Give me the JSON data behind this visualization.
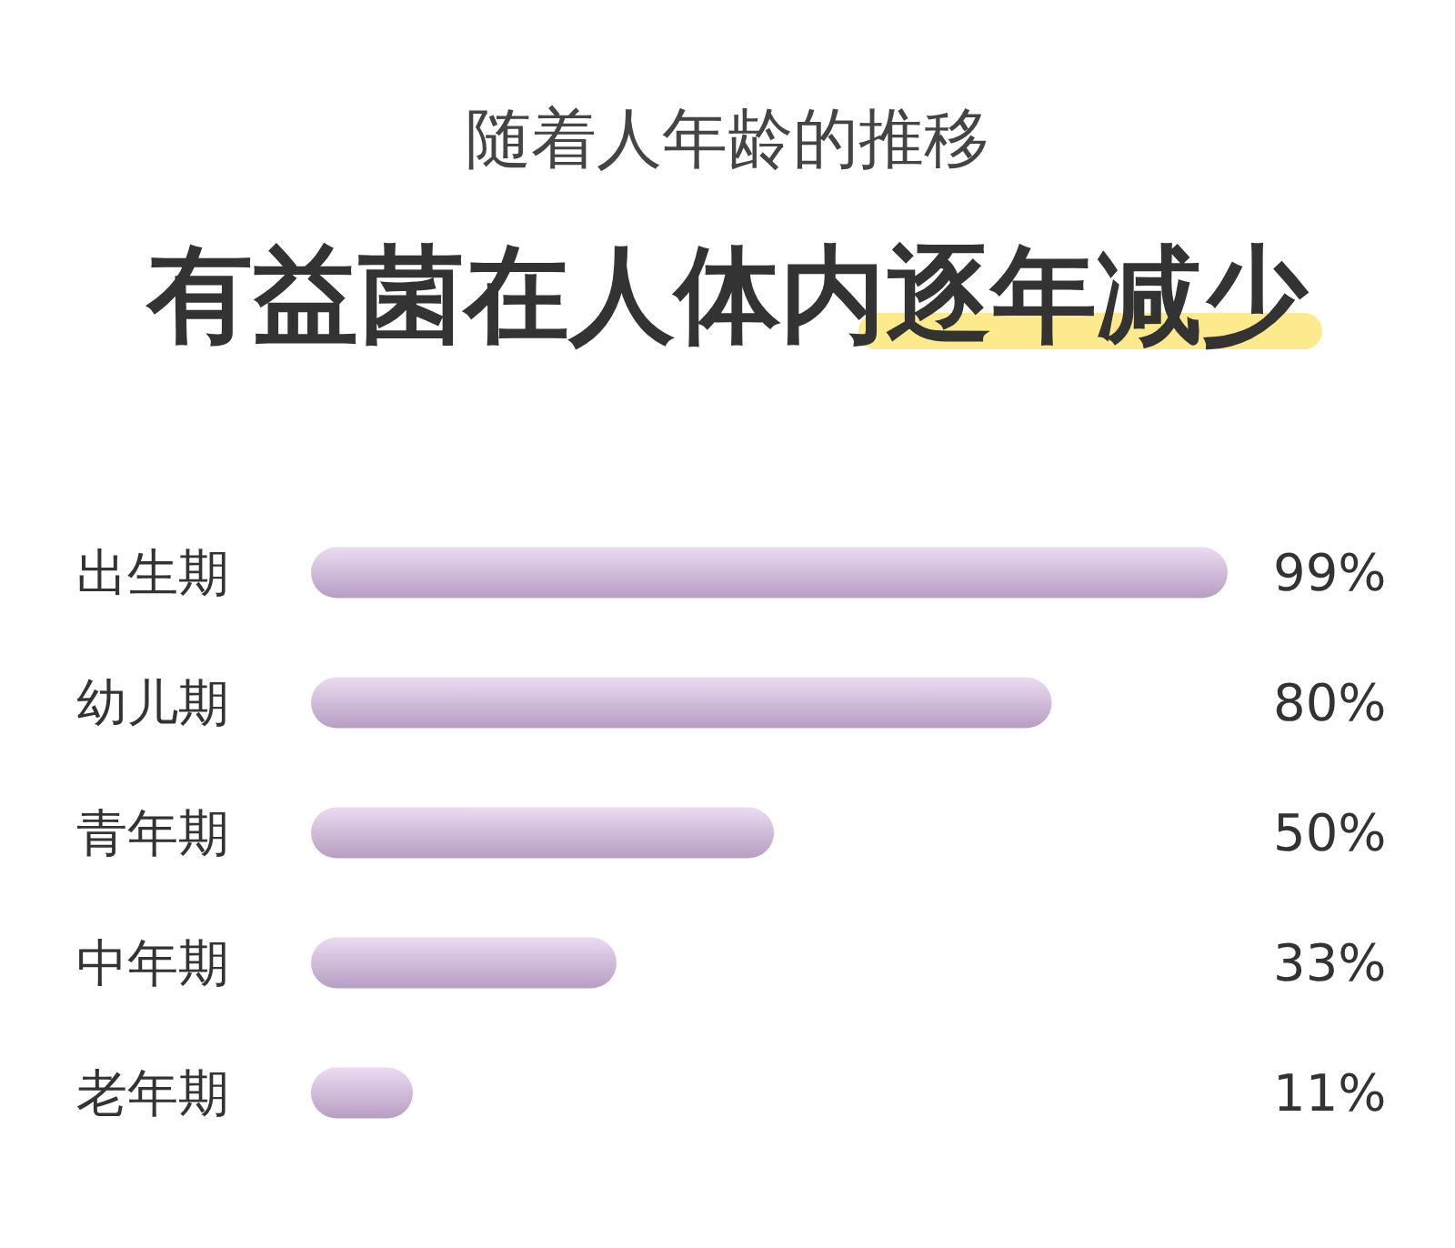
{
  "chart_data": {
    "type": "bar",
    "orientation": "horizontal",
    "subtitle": "随着人年龄的推移",
    "title": "有益菌在人体内逐年减少",
    "categories": [
      "出生期",
      "幼儿期",
      "青年期",
      "中年期",
      "老年期"
    ],
    "values": [
      99,
      80,
      50,
      33,
      11
    ],
    "value_labels": [
      "99%",
      "80%",
      "50%",
      "33%",
      "11%"
    ],
    "color": "#d0b2de",
    "tick_labels": "y"
  }
}
